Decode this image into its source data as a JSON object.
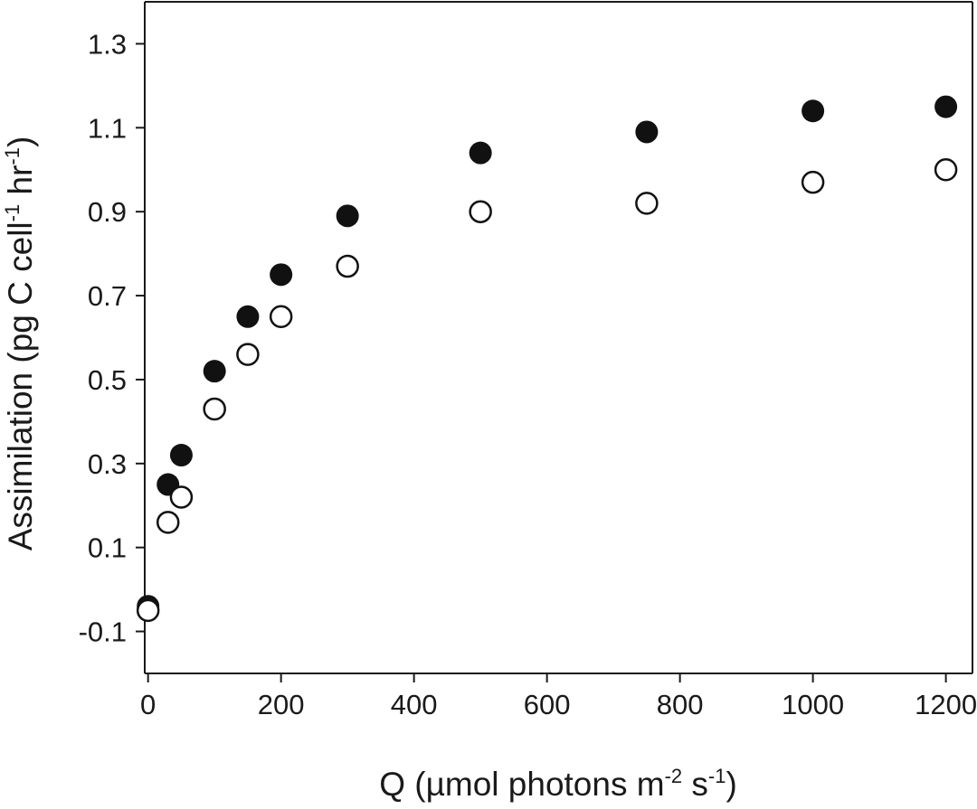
{
  "chart_data": {
    "type": "scatter",
    "title": "",
    "xlabel": {
      "parts": [
        {
          "text": "Q (µmol photons m",
          "sup": false
        },
        {
          "text": "-2",
          "sup": true
        },
        {
          "text": " s",
          "sup": false
        },
        {
          "text": "-1",
          "sup": true
        },
        {
          "text": ")",
          "sup": false
        }
      ]
    },
    "ylabel": {
      "parts": [
        {
          "text": "Assimilation (pg C cell",
          "sup": false
        },
        {
          "text": "-1",
          "sup": true
        },
        {
          "text": " hr",
          "sup": false
        },
        {
          "text": "-1",
          "sup": true
        },
        {
          "text": ")",
          "sup": false
        }
      ]
    },
    "xlim": [
      -5,
      1240
    ],
    "ylim": [
      -0.2,
      1.4
    ],
    "xticks": [
      0,
      200,
      400,
      600,
      800,
      1000,
      1200
    ],
    "xtick_labels": [
      "0",
      "200",
      "400",
      "600",
      "800",
      "1000",
      "1200"
    ],
    "yticks": [
      -0.1,
      0.1,
      0.3,
      0.5,
      0.7,
      0.9,
      1.1,
      1.3
    ],
    "ytick_labels": [
      "-0.1",
      "0.1",
      "0.3",
      "0.5",
      "0.7",
      "0.9",
      "1.1",
      "1.3"
    ],
    "grid": false,
    "series": [
      {
        "marker": "filled-circle",
        "color": "#111111",
        "x": [
          0,
          30,
          50,
          100,
          150,
          200,
          300,
          500,
          750,
          1000,
          1200
        ],
        "y": [
          -0.04,
          0.25,
          0.32,
          0.52,
          0.65,
          0.75,
          0.89,
          1.04,
          1.09,
          1.14,
          1.15
        ]
      },
      {
        "marker": "open-circle",
        "color": "#111111",
        "x": [
          0,
          30,
          50,
          100,
          150,
          200,
          300,
          500,
          750,
          1000,
          1200
        ],
        "y": [
          -0.05,
          0.16,
          0.22,
          0.43,
          0.56,
          0.65,
          0.77,
          0.9,
          0.92,
          0.97,
          1.0
        ]
      }
    ]
  }
}
